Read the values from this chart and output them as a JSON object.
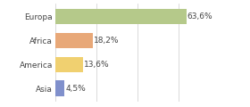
{
  "categories": [
    "Europa",
    "Africa",
    "America",
    "Asia"
  ],
  "values": [
    63.6,
    18.2,
    13.6,
    4.5
  ],
  "labels": [
    "63,6%",
    "18,2%",
    "13,6%",
    "4,5%"
  ],
  "bar_colors": [
    "#b5c98a",
    "#e8a878",
    "#f0d070",
    "#8090cc"
  ],
  "background_color": "#ffffff",
  "xlim": [
    0,
    80
  ],
  "label_fontsize": 6.5,
  "category_fontsize": 6.5,
  "bar_height": 0.65
}
